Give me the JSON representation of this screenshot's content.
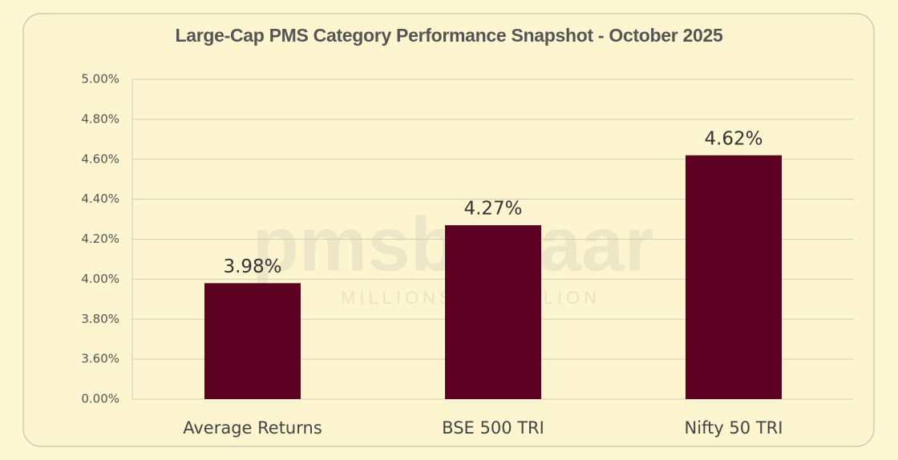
{
  "chart_data": {
    "type": "bar",
    "title": "Large-Cap PMS Category Performance Snapshot - October 2025",
    "watermark": "pmsbazaar",
    "watermark_tagline": "MILLIONS TO BILLION",
    "categories": [
      "Average Returns",
      "BSE 500 TRI",
      "Nifty 50 TRI"
    ],
    "values": [
      3.98,
      4.27,
      4.62
    ],
    "value_labels": [
      "3.98%",
      "4.27%",
      "4.62%"
    ],
    "color": "#5c0121",
    "axis_break": true,
    "ylim": [
      0,
      5
    ],
    "yticks": [
      {
        "value": 0,
        "label": "0.00%"
      },
      {
        "value": 3.6,
        "label": "3.60%"
      },
      {
        "value": 3.8,
        "label": "3.80%"
      },
      {
        "value": 4.0,
        "label": "4.00%"
      },
      {
        "value": 4.2,
        "label": "4.20%"
      },
      {
        "value": 4.4,
        "label": "4.40%"
      },
      {
        "value": 4.6,
        "label": "4.60%"
      },
      {
        "value": 4.8,
        "label": "4.80%"
      },
      {
        "value": 5.0,
        "label": "5.00%"
      }
    ],
    "grid": true
  }
}
